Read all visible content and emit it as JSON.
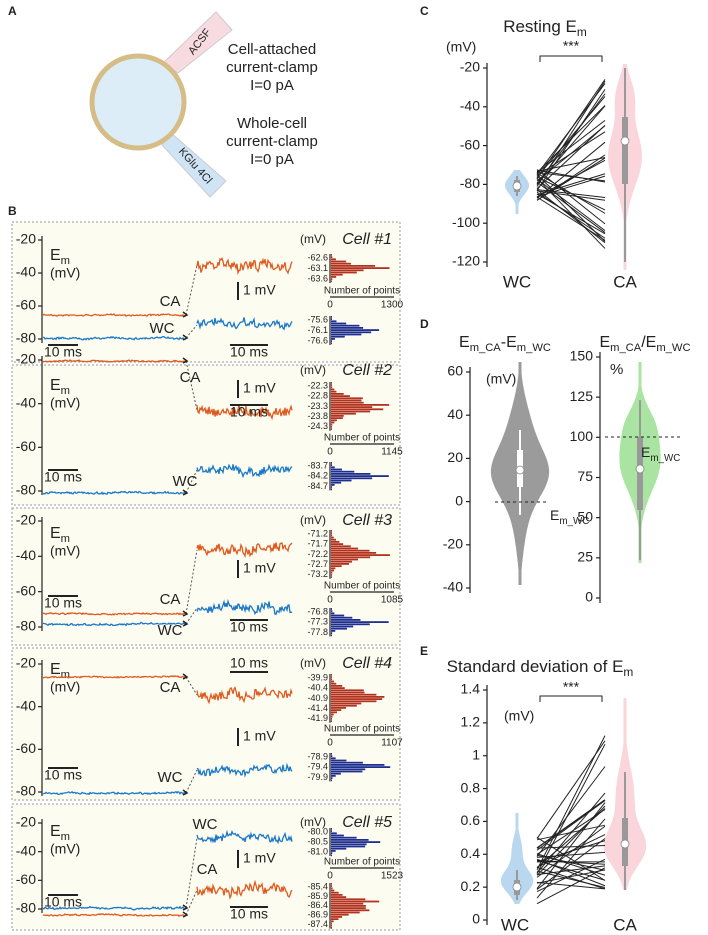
{
  "panel_a": {
    "label": "A",
    "acsf": "ACSF",
    "kglu": "KGlu 4Cl",
    "ca_lines": [
      "Cell-attached",
      "current-clamp",
      "I=0 pA"
    ],
    "wc_lines": [
      "Whole-cell",
      "current-clamp",
      "I=0 pA"
    ]
  },
  "panel_b": {
    "label": "B",
    "cells": [
      {
        "title": "Cell #1",
        "yticks": [
          "-20",
          "-40",
          "-60",
          "-80"
        ],
        "em": [
          {
            "t": "E"
          },
          {
            "s": "m"
          }
        ],
        "em_unit": "(mV)",
        "ca": "CA",
        "wc": "WC",
        "scale_ms_left": "10 ms",
        "scale_ms_right": "10 ms",
        "scale_mv": "1 mV",
        "hist_unit": "(mV)",
        "hist_upper": [
          "-62.6",
          "-63.1",
          "-63.6"
        ],
        "hist_axis_title": "Number of points",
        "hist_axis_ticks": [
          "0",
          "1300"
        ],
        "hist_lower": [
          "-75.6",
          "-76.1",
          "-76.6"
        ]
      },
      {
        "title": "Cell #2",
        "yticks": [
          "-20",
          "-40",
          "-60",
          "-80"
        ],
        "em": [
          {
            "t": "E"
          },
          {
            "s": "m"
          }
        ],
        "em_unit": "(mV)",
        "ca": "CA",
        "wc": "WC",
        "scale_ms_left": "10 ms",
        "scale_ms_right": "10 ms",
        "scale_mv": "1 mV",
        "hist_unit": "(mV)",
        "hist_upper": [
          "-22.3",
          "-22.8",
          "-23.3",
          "-23.8",
          "-24.3"
        ],
        "hist_axis_title": "Number of points",
        "hist_axis_ticks": [
          "0",
          "1145"
        ],
        "hist_lower": [
          "-83.7",
          "-84.2",
          "-84.7"
        ]
      },
      {
        "title": "Cell #3",
        "yticks": [
          "-20",
          "-40",
          "-60",
          "-80"
        ],
        "em": [
          {
            "t": "E"
          },
          {
            "s": "m"
          }
        ],
        "em_unit": "(mV)",
        "ca": "CA",
        "wc": "WC",
        "scale_ms_left": "10 ms",
        "scale_ms_right": "10 ms",
        "scale_mv": "1 mV",
        "hist_unit": "(mV)",
        "hist_upper": [
          "-71.2",
          "-71.7",
          "-72.2",
          "-72.7",
          "-73.2"
        ],
        "hist_axis_title": "Number of points",
        "hist_axis_ticks": [
          "0",
          "1085"
        ],
        "hist_lower": [
          "-76.8",
          "-77.3",
          "-77.8"
        ]
      },
      {
        "title": "Cell #4",
        "yticks": [
          "-20",
          "-40",
          "-60",
          "-80"
        ],
        "em": [
          {
            "t": "E"
          },
          {
            "s": "m"
          }
        ],
        "em_unit": "(mV)",
        "ca": "CA",
        "wc": "WC",
        "scale_ms_left": "10 ms",
        "scale_ms_right": "10 ms",
        "scale_mv": "1 mV",
        "hist_unit": "(mV)",
        "hist_upper": [
          "-39.9",
          "-40.4",
          "-40.9",
          "-41.4",
          "-41.9"
        ],
        "hist_axis_title": "Number of points",
        "hist_axis_ticks": [
          "0",
          "1107"
        ],
        "hist_lower": [
          "-78.9",
          "-79.4",
          "-79.9"
        ]
      },
      {
        "title": "Cell #5",
        "yticks": [
          "-20",
          "-40",
          "-60",
          "-80"
        ],
        "em": [
          {
            "t": "E"
          },
          {
            "s": "m"
          }
        ],
        "em_unit": "(mV)",
        "ca": "CA",
        "wc": "WC",
        "scale_ms_left": "10 ms",
        "scale_ms_right": "10 ms",
        "scale_mv": "1 mV",
        "hist_unit": "(mV)",
        "hist_upper": [
          "-80.0",
          "-80.5",
          "-81.0"
        ],
        "hist_axis_title": "Number of points",
        "hist_axis_ticks": [
          "0",
          "1523"
        ],
        "hist_lower": [
          "-85.4",
          "-85.9",
          "-86.4",
          "-86.9",
          "-87.4"
        ]
      }
    ]
  },
  "panel_c": {
    "label": "C",
    "title": [
      {
        "t": "Resting E"
      },
      {
        "s": "m"
      }
    ],
    "unit": "(mV)",
    "yticks": [
      "-20",
      "-40",
      "-60",
      "-80",
      "-100",
      "-120"
    ],
    "significance": "***",
    "groups": [
      "WC",
      "CA"
    ]
  },
  "panel_d": {
    "label": "D",
    "left": {
      "title": [
        {
          "t": "E"
        },
        {
          "s": "m_CA"
        },
        {
          "t": "-E"
        },
        {
          "s": "m_WC"
        }
      ],
      "unit": "(mV)",
      "yticks": [
        "60",
        "40",
        "20",
        "0",
        "-20",
        "-40"
      ],
      "reference": [
        {
          "t": "E"
        },
        {
          "s": "m_WC"
        }
      ]
    },
    "right": {
      "title": [
        {
          "t": "E"
        },
        {
          "s": "m_CA"
        },
        {
          "t": "/E"
        },
        {
          "s": "m_WC"
        }
      ],
      "unit": "%",
      "yticks": [
        "150",
        "125",
        "100",
        "75",
        "50",
        "25",
        "0"
      ],
      "reference": [
        {
          "t": "E"
        },
        {
          "s": "m_WC"
        }
      ]
    }
  },
  "panel_e": {
    "label": "E",
    "title": [
      {
        "t": "Standard deviation of E"
      },
      {
        "s": "m"
      }
    ],
    "unit": "(mV)",
    "yticks": [
      "1.4",
      "1.2",
      "1",
      "0.8",
      "0.6",
      "0.4",
      "0.2",
      "0"
    ],
    "significance": "***",
    "groups": [
      "WC",
      "CA"
    ]
  }
}
